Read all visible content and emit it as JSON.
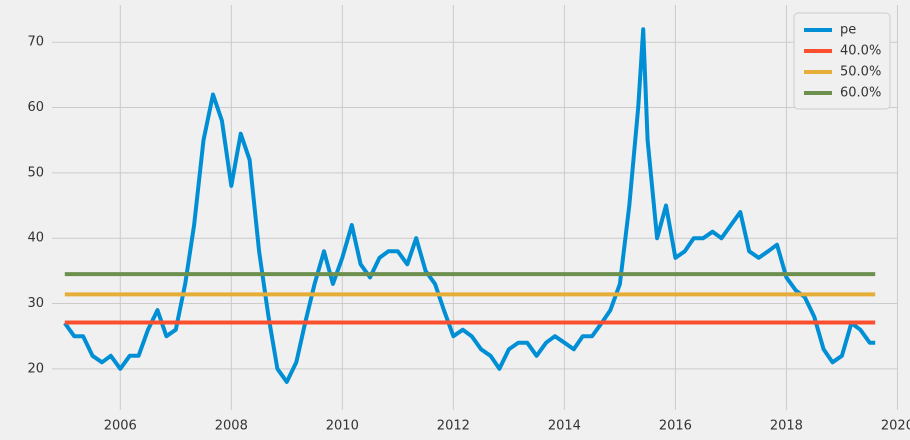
{
  "chart_data": {
    "type": "line",
    "xlim": [
      2004.77,
      2020.01
    ],
    "xticks": [
      2006,
      2008,
      2010,
      2012,
      2014,
      2016,
      2018,
      2020
    ],
    "ylim": [
      13.7,
      75.7
    ],
    "yticks": [
      20,
      30,
      40,
      50,
      60,
      70
    ],
    "grid": true,
    "legend": "upper right",
    "series": [
      {
        "name": "pe",
        "color": "#008fd5",
        "x": [
          2005.0,
          2005.17,
          2005.33,
          2005.5,
          2005.67,
          2005.83,
          2006.0,
          2006.17,
          2006.33,
          2006.5,
          2006.67,
          2006.83,
          2007.0,
          2007.17,
          2007.33,
          2007.5,
          2007.67,
          2007.83,
          2008.0,
          2008.17,
          2008.33,
          2008.5,
          2008.67,
          2008.83,
          2009.0,
          2009.17,
          2009.33,
          2009.5,
          2009.67,
          2009.83,
          2010.0,
          2010.17,
          2010.33,
          2010.5,
          2010.67,
          2010.83,
          2011.0,
          2011.17,
          2011.33,
          2011.5,
          2011.67,
          2011.83,
          2012.0,
          2012.17,
          2012.33,
          2012.5,
          2012.67,
          2012.83,
          2013.0,
          2013.17,
          2013.33,
          2013.5,
          2013.67,
          2013.83,
          2014.0,
          2014.17,
          2014.33,
          2014.5,
          2014.67,
          2014.83,
          2015.0,
          2015.17,
          2015.33,
          2015.42,
          2015.5,
          2015.67,
          2015.83,
          2016.0,
          2016.17,
          2016.33,
          2016.5,
          2016.67,
          2016.83,
          2017.0,
          2017.17,
          2017.33,
          2017.5,
          2017.67,
          2017.83,
          2018.0,
          2018.17,
          2018.33,
          2018.5,
          2018.67,
          2018.83,
          2019.0,
          2019.17,
          2019.33,
          2019.5,
          2019.6
        ],
        "values": [
          27,
          25,
          25,
          22,
          21,
          22,
          20,
          22,
          22,
          26,
          29,
          25,
          26,
          33,
          42,
          55,
          62,
          58,
          48,
          56,
          52,
          38,
          28,
          20,
          18,
          21,
          27,
          33,
          38,
          33,
          37,
          42,
          36,
          34,
          37,
          38,
          38,
          36,
          40,
          35,
          33,
          29,
          25,
          26,
          25,
          23,
          22,
          20,
          23,
          24,
          24,
          22,
          24,
          25,
          24,
          23,
          25,
          25,
          27,
          29,
          33,
          45,
          60,
          72,
          55,
          40,
          45,
          37,
          38,
          40,
          40,
          41,
          40,
          42,
          44,
          38,
          37,
          38,
          39,
          34,
          32,
          31,
          28,
          23,
          21,
          22,
          27,
          26,
          24,
          24
        ]
      },
      {
        "name": "40.0%",
        "color": "#fc4f30",
        "x": [
          2005.0,
          2019.6
        ],
        "values": [
          27.1,
          27.1
        ]
      },
      {
        "name": "50.0%",
        "color": "#e5ae38",
        "x": [
          2005.0,
          2019.6
        ],
        "values": [
          31.4,
          31.4
        ]
      },
      {
        "name": "60.0%",
        "color": "#6d904f",
        "x": [
          2005.0,
          2019.6
        ],
        "values": [
          34.5,
          34.5
        ]
      }
    ]
  }
}
